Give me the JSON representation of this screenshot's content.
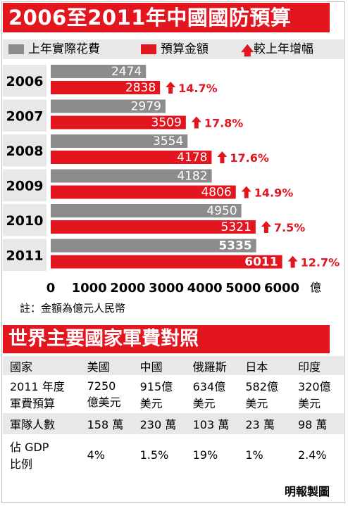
{
  "title": "2006至2011年中國國防預算",
  "legend": {
    "actual": "上年實際花費",
    "budget": "預算金額",
    "growth": "較上年增幅",
    "arrow_icon": "up-arrow-icon"
  },
  "colors": {
    "red": "#e3161f",
    "grey": "#8c8c8c",
    "light_grey": "#e8e8e8"
  },
  "chart_data": {
    "type": "bar",
    "orientation": "horizontal",
    "categories": [
      "2006",
      "2007",
      "2008",
      "2009",
      "2010",
      "2011"
    ],
    "series": [
      {
        "name": "上年實際花費",
        "values": [
          2474,
          2979,
          3554,
          4182,
          4950,
          5335
        ]
      },
      {
        "name": "預算金額",
        "values": [
          2838,
          3509,
          4178,
          4806,
          5321,
          6011
        ]
      }
    ],
    "growth_labels": [
      "14.7%",
      "17.8%",
      "17.6%",
      "14.9%",
      "7.5%",
      "12.7%"
    ],
    "value_labels_actual": [
      "2474",
      "2979",
      "3554",
      "4182",
      "4950",
      "5335"
    ],
    "value_labels_budget": [
      "2838",
      "3509",
      "4178",
      "4806",
      "5321",
      "6011"
    ],
    "xlim": [
      0,
      6000
    ],
    "xticks": [
      "0",
      "1000",
      "2000",
      "3000",
      "4000",
      "5000",
      "6000"
    ],
    "unit_label": "億",
    "note": "註：金額為億元人民幣"
  },
  "section2": {
    "title": "世界主要國家軍費對照",
    "header": [
      "國家",
      "美國",
      "中國",
      "俄羅斯",
      "日本",
      "印度"
    ],
    "rows": [
      {
        "label_lines": [
          "2011 年度",
          "軍費預算"
        ],
        "cells": [
          [
            "7250",
            "億美元"
          ],
          [
            "915億",
            "美元"
          ],
          [
            "634億",
            "美元"
          ],
          [
            "582億",
            "美元"
          ],
          [
            "320億",
            "美元"
          ]
        ]
      },
      {
        "label_lines": [
          "軍隊人數"
        ],
        "cells": [
          [
            "158 萬"
          ],
          [
            "230 萬"
          ],
          [
            "103 萬"
          ],
          [
            "23 萬"
          ],
          [
            "98 萬"
          ]
        ]
      },
      {
        "label_lines": [
          "佔 GDP",
          "比例"
        ],
        "cells": [
          [
            "4%"
          ],
          [
            "1.5%"
          ],
          [
            "19%"
          ],
          [
            "1%"
          ],
          [
            "2.4%"
          ]
        ]
      }
    ]
  },
  "credit": "明報製圖"
}
